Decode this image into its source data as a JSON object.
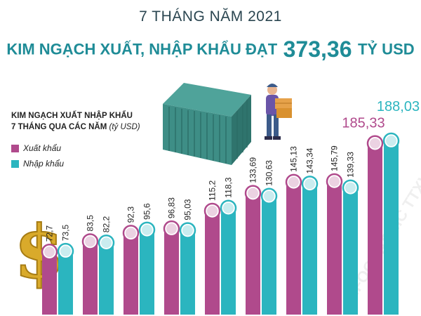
{
  "header": {
    "period": "7 THÁNG NĂM 2021",
    "headline_prefix": "KIM NGẠCH XUẤT, NHẬP KHẨU ĐẠT",
    "headline_value": "373,36",
    "headline_unit": "TỶ USD"
  },
  "chart_heading": {
    "line1": "KIM NGẠCH XUẤT NHẬP KHẨU",
    "line2": "7 THÁNG QUA CÁC NĂM",
    "unit": "(tỷ USD)"
  },
  "colors": {
    "export": "#b04a8c",
    "import": "#2bb5bf",
    "title": "#1f8c97",
    "export_label_big": "#b04a8c",
    "import_label_big": "#2bb5bf"
  },
  "chart_data": {
    "type": "bar",
    "categories": [
      "",
      "",
      "",
      "",
      "",
      "",
      "",
      "",
      ""
    ],
    "series": [
      {
        "name": "Xuất khẩu",
        "values": [
          72.7,
          83.5,
          92.3,
          96.83,
          115.2,
          133.69,
          145.13,
          145.79,
          185.33
        ],
        "labels": [
          "72,7",
          "83,5",
          "92,3",
          "96,83",
          "115,2",
          "133,69",
          "145,13",
          "145,79",
          "185,33"
        ]
      },
      {
        "name": "Nhập khẩu",
        "values": [
          73.5,
          82.2,
          95.6,
          95.03,
          118.3,
          130.63,
          143.34,
          139.33,
          188.03
        ],
        "labels": [
          "73,5",
          "82,2",
          "95,6",
          "95,03",
          "118,3",
          "130,63",
          "143,34",
          "139,33",
          "188,03"
        ]
      }
    ],
    "ylim": [
      0,
      200
    ],
    "grid": false,
    "legend": "left"
  }
}
